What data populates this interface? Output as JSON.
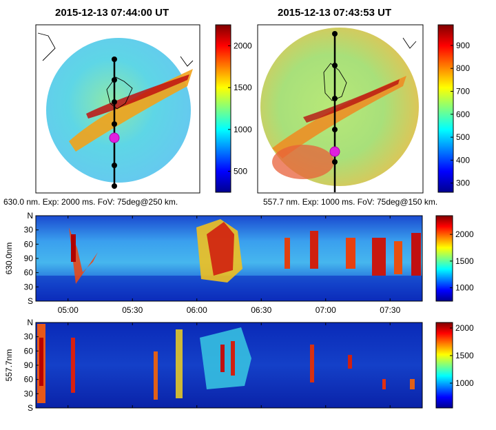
{
  "panel_titles": [
    "2015-12-13 07:44:00 UT",
    "2015-12-13 07:43:53 UT"
  ],
  "captions": [
    "630.0 nm. Exp: 2000 ms. FoV: 75deg@250 km.",
    "557.7 nm. Exp: 1000 ms. FoV: 75deg@150 km."
  ],
  "colors": {
    "track": "#000000",
    "marker": "#e020e0",
    "frame": "#000000"
  },
  "chart_data": [
    {
      "type": "heatmap",
      "title": "2015-12-13 07:44:00 UT",
      "caption": "630.0 nm. Exp: 2000 ms. FoV: 75deg@250 km.",
      "colorbar": {
        "ticks": [
          500,
          1000,
          1500,
          2000
        ],
        "range": [
          250,
          2250
        ]
      }
    },
    {
      "type": "heatmap",
      "title": "2015-12-13 07:43:53 UT",
      "caption": "557.7 nm. Exp: 1000 ms. FoV: 75deg@150 km.",
      "colorbar": {
        "ticks": [
          300,
          400,
          500,
          600,
          700,
          800,
          900
        ],
        "range": [
          260,
          990
        ]
      }
    },
    {
      "type": "heatmap",
      "ylabel": "630.0nm",
      "y_ticklabels": [
        "N",
        "30",
        "60",
        "90",
        "60",
        "30",
        "S"
      ],
      "x_ticklabels": [
        "05:00",
        "05:30",
        "06:00",
        "06:30",
        "07:00",
        "07:30"
      ],
      "colorbar": {
        "ticks": [
          1000,
          1500,
          2000
        ],
        "range": [
          750,
          2350
        ]
      }
    },
    {
      "type": "heatmap",
      "ylabel": "557.7nm",
      "y_ticklabels": [
        "N",
        "30",
        "60",
        "90",
        "60",
        "30",
        "S"
      ],
      "x_ticklabels": [
        "05:00",
        "05:30",
        "06:00",
        "06:30",
        "07:00",
        "07:30"
      ],
      "colorbar": {
        "ticks": [
          1000,
          1500,
          2000
        ],
        "range": [
          550,
          2100
        ]
      }
    }
  ]
}
